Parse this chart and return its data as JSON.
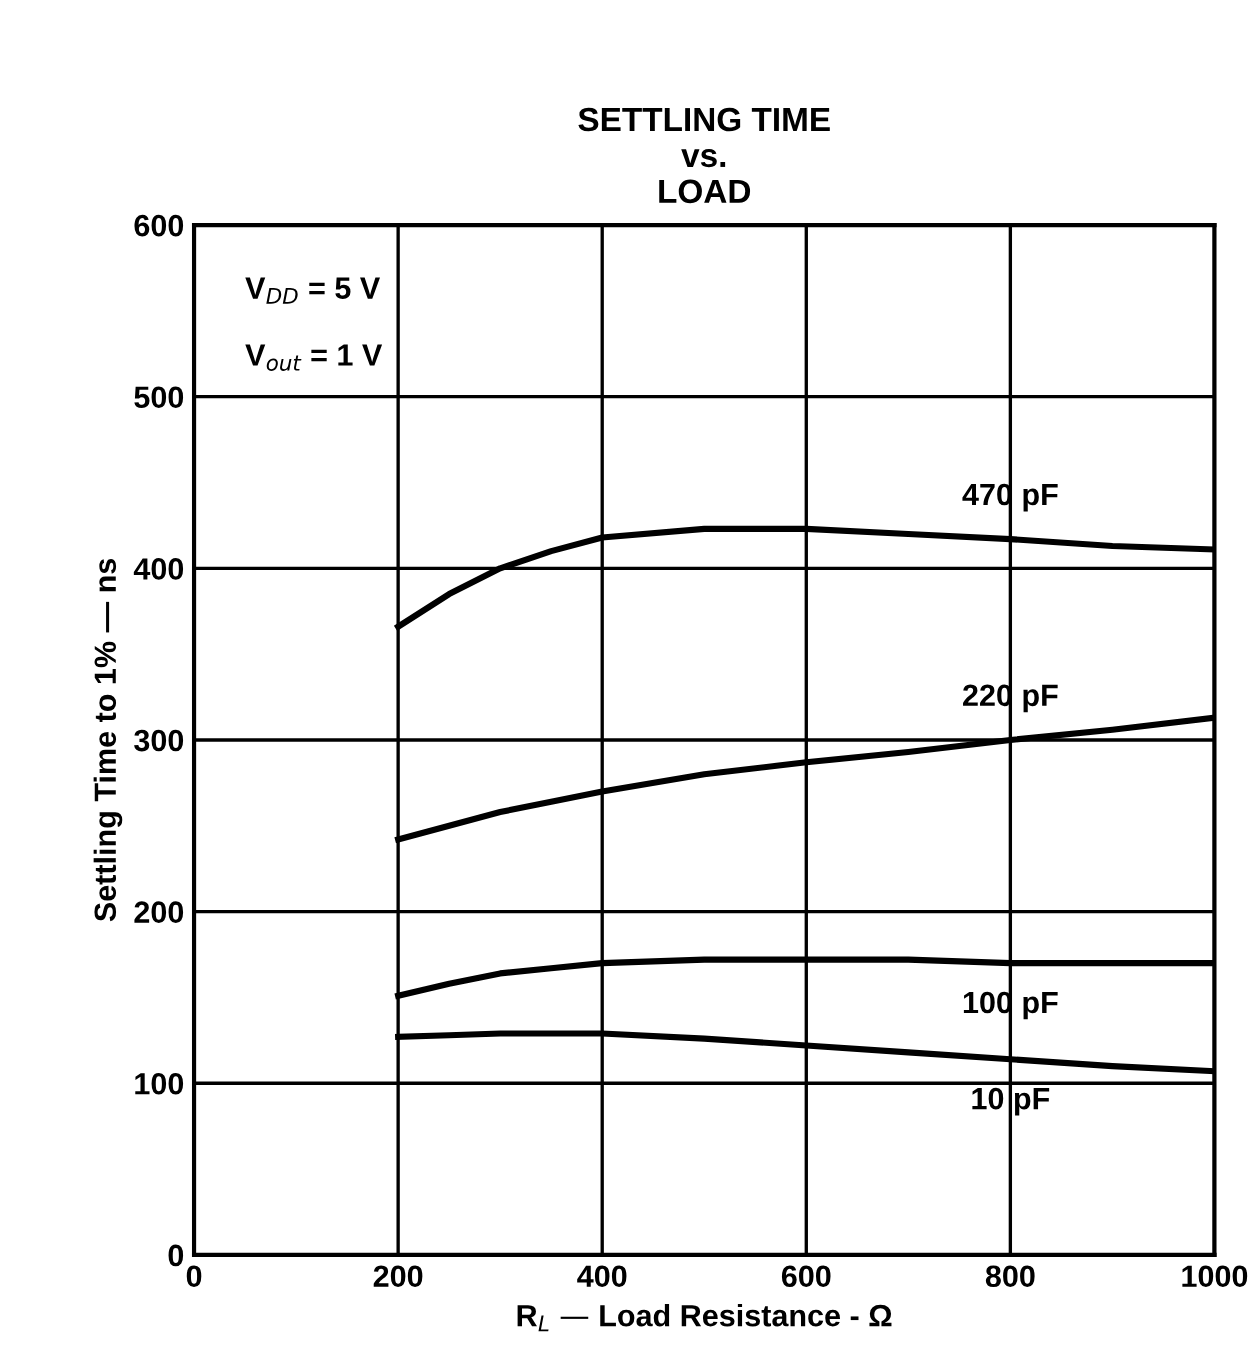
{
  "chart_data": {
    "type": "line",
    "title": "SETTLING TIME\nvs.\nLOAD",
    "xlabel": "R$_{L}$ — Load Resistance - Ω",
    "ylabel": "Settling Time to 1% — ns",
    "x": [
      200,
      250,
      300,
      350,
      400,
      500,
      600,
      700,
      800,
      900,
      1000
    ],
    "series": [
      {
        "name": "470 pF",
        "color": "#000000",
        "values": [
          366,
          385,
          400,
          410,
          418,
          423,
          423,
          420,
          417,
          413,
          411
        ]
      },
      {
        "name": "220 pF",
        "color": "#000000",
        "values": [
          242,
          250,
          258,
          264,
          270,
          280,
          287,
          293,
          300,
          306,
          313
        ]
      },
      {
        "name": "100 pF",
        "color": "#000000",
        "values": [
          151,
          158,
          164,
          167,
          170,
          172,
          172,
          172,
          170,
          170,
          170
        ]
      },
      {
        "name": "10 pF",
        "color": "#000000",
        "values": [
          127,
          128,
          129,
          129,
          129,
          126,
          122,
          118,
          114,
          110,
          107
        ]
      }
    ],
    "annotations": [
      "V$_{DD}$ = 5 V",
      "V$_{out}$ = 1 V"
    ],
    "xlim": [
      0,
      1000
    ],
    "xticks": [
      0,
      200,
      400,
      600,
      800,
      1000
    ],
    "ylim": [
      0,
      600
    ],
    "yticks": [
      0,
      100,
      200,
      300,
      400,
      500,
      600
    ],
    "grid": true,
    "legend": false,
    "marker": "none",
    "line_style": "solid"
  }
}
